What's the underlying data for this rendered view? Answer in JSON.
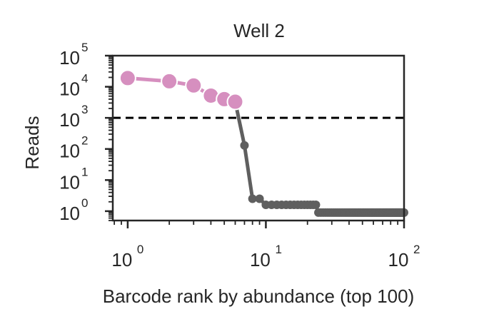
{
  "chart_data": {
    "type": "line",
    "title": "Well 2",
    "xlabel": "Barcode rank by abundance (top 100)",
    "ylabel": "Reads",
    "xscale": "log",
    "yscale": "log",
    "xlim": [
      0.78,
      100
    ],
    "ylim": [
      0.5,
      100000
    ],
    "grid": false,
    "x_ticks": [
      {
        "base": "10",
        "exp": "0"
      },
      {
        "base": "10",
        "exp": "1"
      },
      {
        "base": "10",
        "exp": "2"
      }
    ],
    "y_ticks": [
      {
        "base": "10",
        "exp": "0"
      },
      {
        "base": "10",
        "exp": "1"
      },
      {
        "base": "10",
        "exp": "2"
      },
      {
        "base": "10",
        "exp": "3"
      },
      {
        "base": "10",
        "exp": "4"
      },
      {
        "base": "10",
        "exp": "5"
      }
    ],
    "threshold": {
      "y": 1000,
      "style": "dashed",
      "color": "#000000"
    },
    "highlight_count": 6,
    "colors": {
      "highlight": "#d68fbf",
      "background": "#5f5f5f",
      "axis": "#262626"
    },
    "series": [
      {
        "values": [
          19000,
          15000,
          11000,
          5200,
          4000,
          3300,
          130,
          2.5,
          2.5,
          1.6,
          1.6,
          1.6,
          1.6,
          1.6,
          1.6,
          1.6,
          1.6,
          1.6,
          1.6,
          1.6,
          1.6,
          1.6,
          1.6,
          0.9,
          0.9,
          0.9,
          0.9,
          0.9,
          0.9,
          0.9,
          0.9,
          0.9,
          0.9,
          0.9,
          0.9,
          0.9,
          0.9,
          0.9,
          0.9,
          0.9,
          0.9,
          0.9,
          0.9,
          0.9,
          0.9,
          0.9,
          0.9,
          0.9,
          0.9,
          0.9,
          0.9,
          0.9,
          0.9,
          0.9,
          0.9,
          0.9,
          0.9,
          0.9,
          0.9,
          0.9,
          0.9,
          0.9,
          0.9,
          0.9,
          0.9,
          0.9,
          0.9,
          0.9,
          0.9,
          0.9,
          0.9,
          0.9,
          0.9,
          0.9,
          0.9,
          0.9,
          0.9,
          0.9,
          0.9,
          0.9,
          0.9,
          0.9,
          0.9,
          0.9,
          0.9,
          0.9,
          0.9,
          0.9,
          0.9,
          0.9,
          0.9,
          0.9,
          0.9,
          0.9,
          0.9,
          0.9,
          0.9,
          0.9,
          0.9,
          0.9
        ]
      }
    ]
  }
}
